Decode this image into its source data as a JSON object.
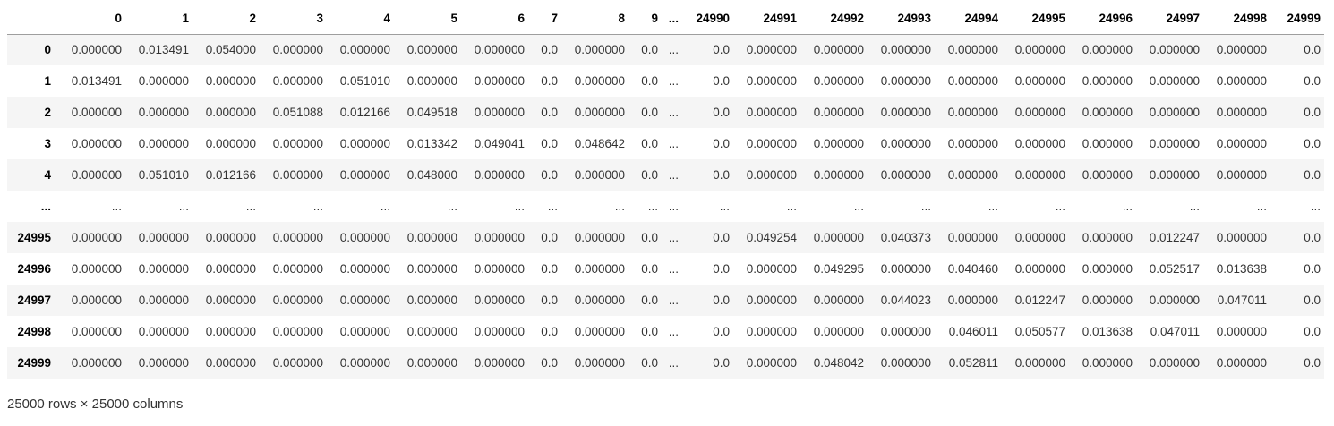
{
  "columns": [
    "0",
    "1",
    "2",
    "3",
    "4",
    "5",
    "6",
    "7",
    "8",
    "9",
    "...",
    "24990",
    "24991",
    "24992",
    "24993",
    "24994",
    "24995",
    "24996",
    "24997",
    "24998",
    "24999"
  ],
  "rows": [
    {
      "index": "0",
      "cells": [
        "0.000000",
        "0.013491",
        "0.054000",
        "0.000000",
        "0.000000",
        "0.000000",
        "0.000000",
        "0.0",
        "0.000000",
        "0.0",
        "...",
        "0.0",
        "0.000000",
        "0.000000",
        "0.000000",
        "0.000000",
        "0.000000",
        "0.000000",
        "0.000000",
        "0.000000",
        "0.0"
      ]
    },
    {
      "index": "1",
      "cells": [
        "0.013491",
        "0.000000",
        "0.000000",
        "0.000000",
        "0.051010",
        "0.000000",
        "0.000000",
        "0.0",
        "0.000000",
        "0.0",
        "...",
        "0.0",
        "0.000000",
        "0.000000",
        "0.000000",
        "0.000000",
        "0.000000",
        "0.000000",
        "0.000000",
        "0.000000",
        "0.0"
      ]
    },
    {
      "index": "2",
      "cells": [
        "0.000000",
        "0.000000",
        "0.000000",
        "0.051088",
        "0.012166",
        "0.049518",
        "0.000000",
        "0.0",
        "0.000000",
        "0.0",
        "...",
        "0.0",
        "0.000000",
        "0.000000",
        "0.000000",
        "0.000000",
        "0.000000",
        "0.000000",
        "0.000000",
        "0.000000",
        "0.0"
      ]
    },
    {
      "index": "3",
      "cells": [
        "0.000000",
        "0.000000",
        "0.000000",
        "0.000000",
        "0.000000",
        "0.013342",
        "0.049041",
        "0.0",
        "0.048642",
        "0.0",
        "...",
        "0.0",
        "0.000000",
        "0.000000",
        "0.000000",
        "0.000000",
        "0.000000",
        "0.000000",
        "0.000000",
        "0.000000",
        "0.0"
      ]
    },
    {
      "index": "4",
      "cells": [
        "0.000000",
        "0.051010",
        "0.012166",
        "0.000000",
        "0.000000",
        "0.048000",
        "0.000000",
        "0.0",
        "0.000000",
        "0.0",
        "...",
        "0.0",
        "0.000000",
        "0.000000",
        "0.000000",
        "0.000000",
        "0.000000",
        "0.000000",
        "0.000000",
        "0.000000",
        "0.0"
      ]
    },
    {
      "index": "...",
      "cells": [
        "...",
        "...",
        "...",
        "...",
        "...",
        "...",
        "...",
        "...",
        "...",
        "...",
        "...",
        "...",
        "...",
        "...",
        "...",
        "...",
        "...",
        "...",
        "...",
        "...",
        "..."
      ]
    },
    {
      "index": "24995",
      "cells": [
        "0.000000",
        "0.000000",
        "0.000000",
        "0.000000",
        "0.000000",
        "0.000000",
        "0.000000",
        "0.0",
        "0.000000",
        "0.0",
        "...",
        "0.0",
        "0.049254",
        "0.000000",
        "0.040373",
        "0.000000",
        "0.000000",
        "0.000000",
        "0.012247",
        "0.000000",
        "0.0"
      ]
    },
    {
      "index": "24996",
      "cells": [
        "0.000000",
        "0.000000",
        "0.000000",
        "0.000000",
        "0.000000",
        "0.000000",
        "0.000000",
        "0.0",
        "0.000000",
        "0.0",
        "...",
        "0.0",
        "0.000000",
        "0.049295",
        "0.000000",
        "0.040460",
        "0.000000",
        "0.000000",
        "0.052517",
        "0.013638",
        "0.0"
      ]
    },
    {
      "index": "24997",
      "cells": [
        "0.000000",
        "0.000000",
        "0.000000",
        "0.000000",
        "0.000000",
        "0.000000",
        "0.000000",
        "0.0",
        "0.000000",
        "0.0",
        "...",
        "0.0",
        "0.000000",
        "0.000000",
        "0.044023",
        "0.000000",
        "0.012247",
        "0.000000",
        "0.000000",
        "0.047011",
        "0.0"
      ]
    },
    {
      "index": "24998",
      "cells": [
        "0.000000",
        "0.000000",
        "0.000000",
        "0.000000",
        "0.000000",
        "0.000000",
        "0.000000",
        "0.0",
        "0.000000",
        "0.0",
        "...",
        "0.0",
        "0.000000",
        "0.000000",
        "0.000000",
        "0.046011",
        "0.050577",
        "0.013638",
        "0.047011",
        "0.000000",
        "0.0"
      ]
    },
    {
      "index": "24999",
      "cells": [
        "0.000000",
        "0.000000",
        "0.000000",
        "0.000000",
        "0.000000",
        "0.000000",
        "0.000000",
        "0.0",
        "0.000000",
        "0.0",
        "...",
        "0.0",
        "0.000000",
        "0.048042",
        "0.000000",
        "0.052811",
        "0.000000",
        "0.000000",
        "0.000000",
        "0.000000",
        "0.0"
      ]
    }
  ],
  "shape_note": "25000 rows × 25000 columns"
}
